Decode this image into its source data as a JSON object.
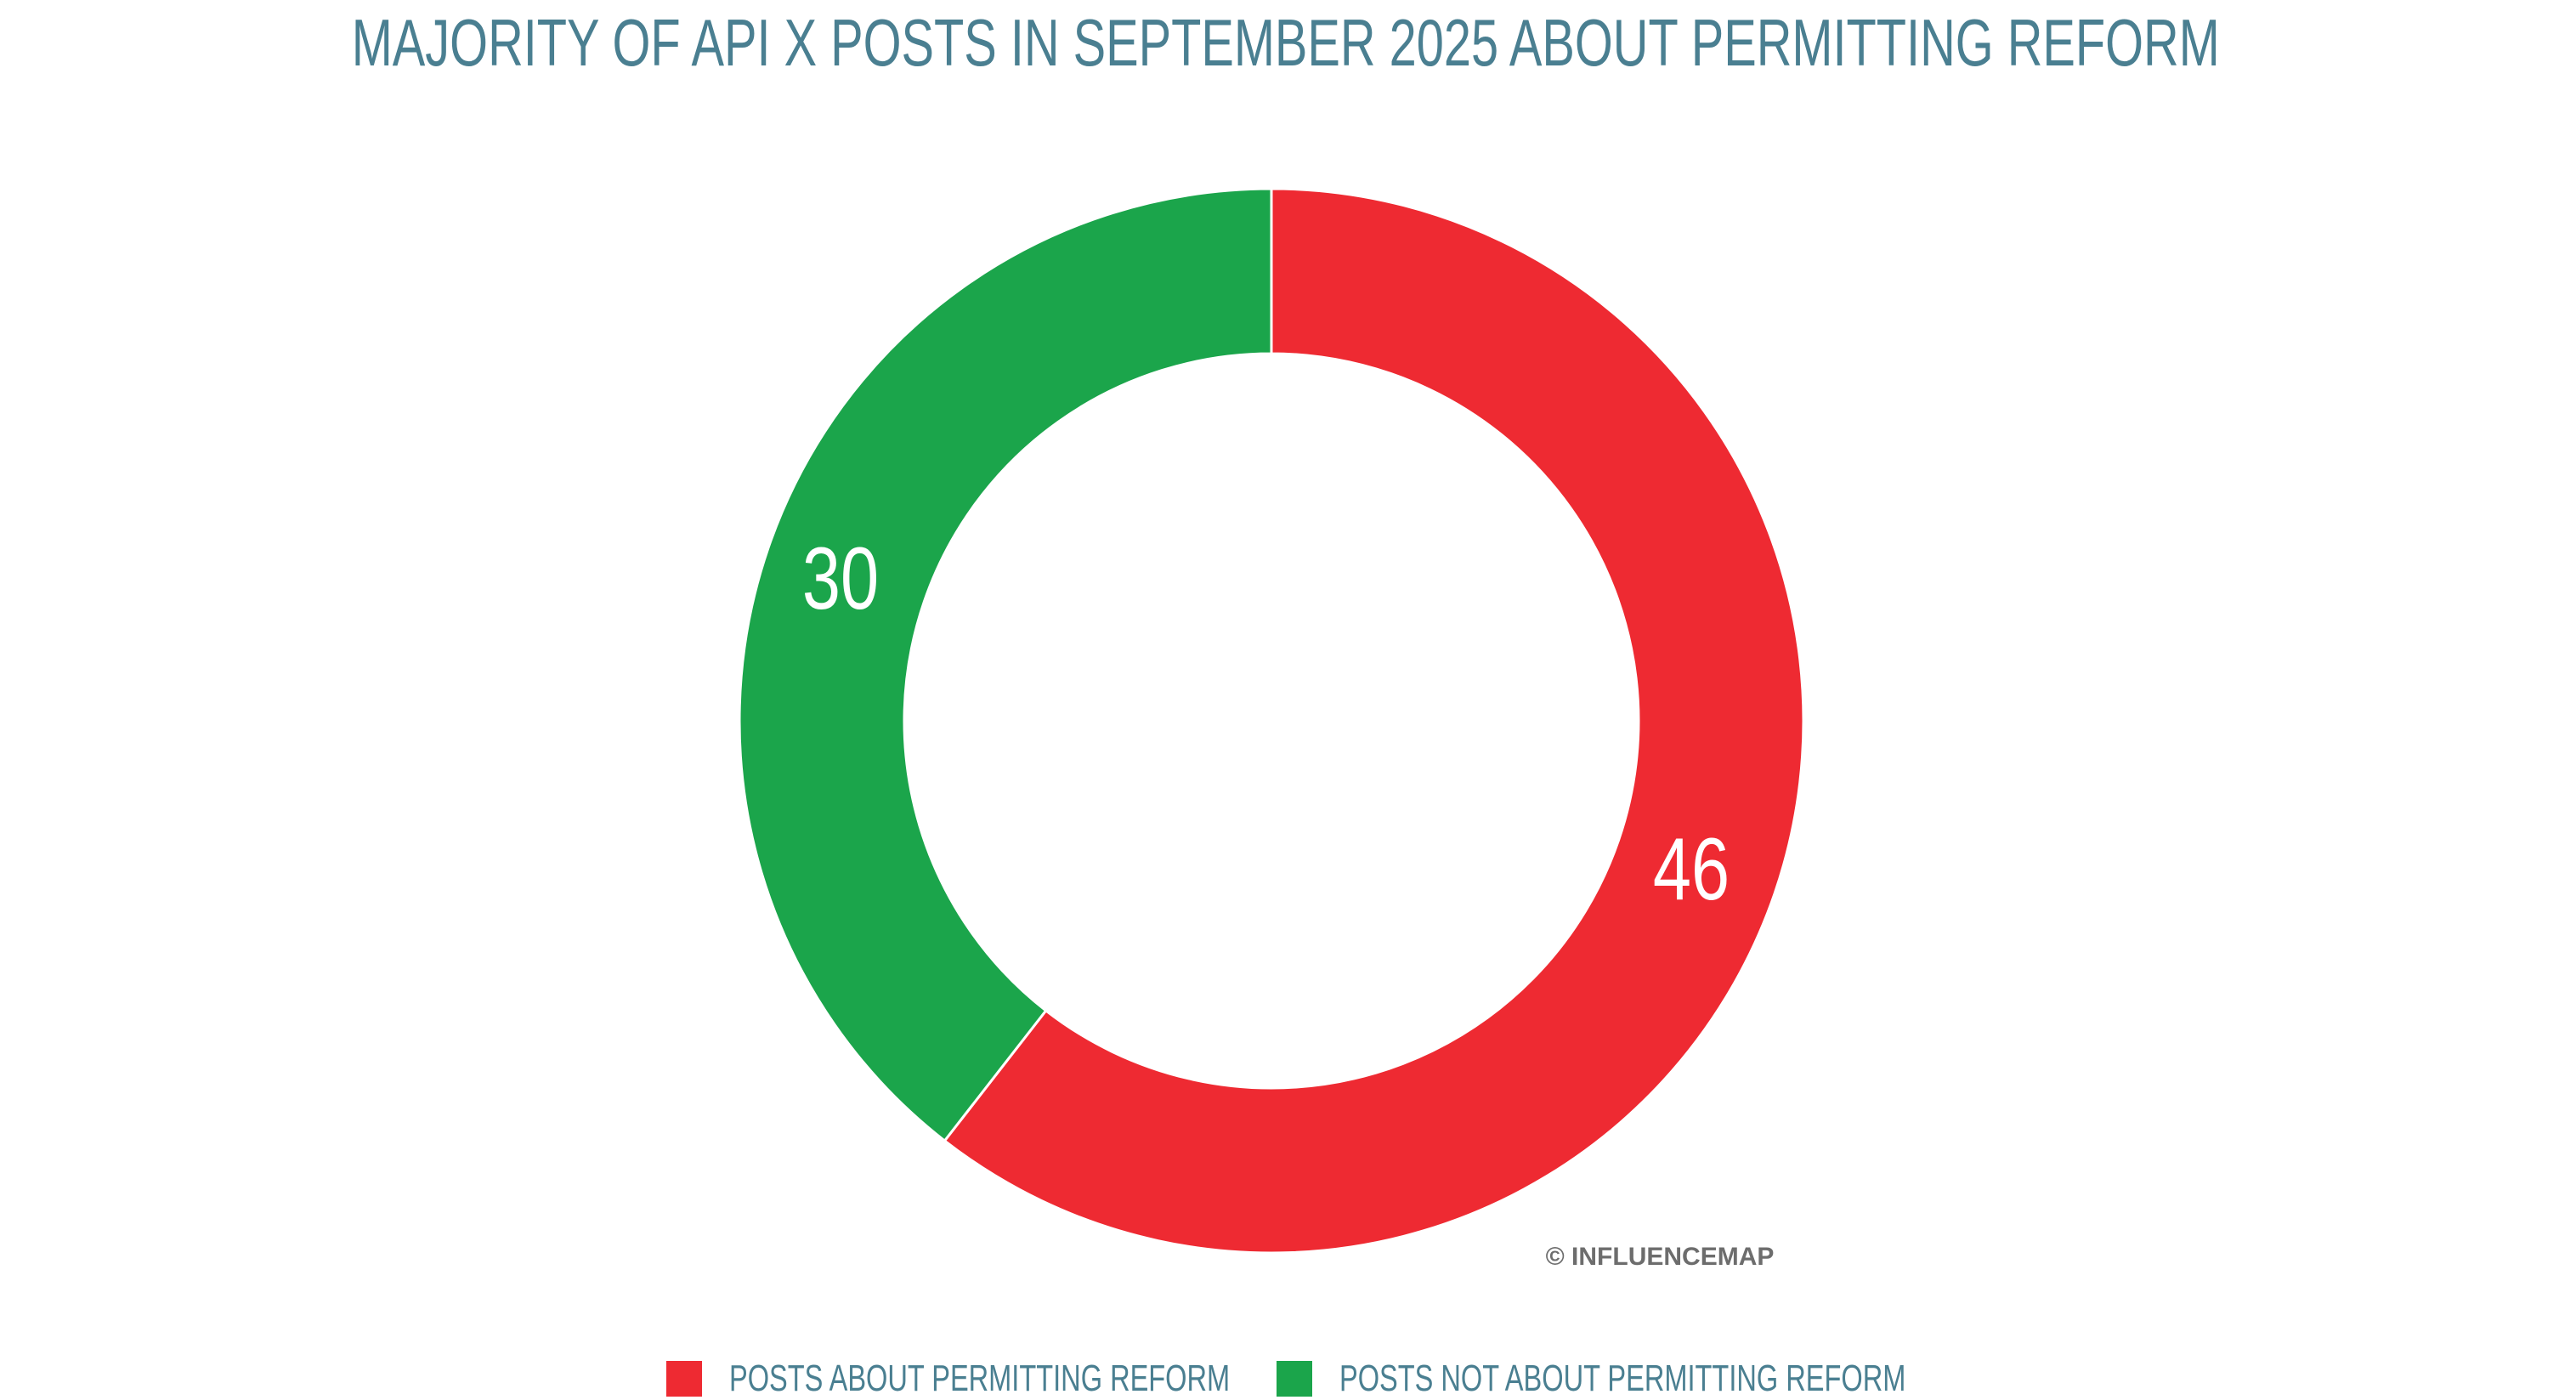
{
  "chart_data": {
    "type": "pie",
    "variant": "donut",
    "title": "MAJORITY OF API X POSTS IN SEPTEMBER 2025 ABOUT PERMITTING REFORM",
    "categories": [
      "POSTS ABOUT PERMITTING REFORM",
      "POSTS NOT ABOUT PERMITTING REFORM"
    ],
    "values": [
      46,
      30
    ],
    "colors": [
      "#ee2a32",
      "#1ba54b"
    ],
    "data_labels": [
      "46",
      "30"
    ],
    "legend_position": "bottom",
    "credit": "© INFLUENCEMAP"
  }
}
